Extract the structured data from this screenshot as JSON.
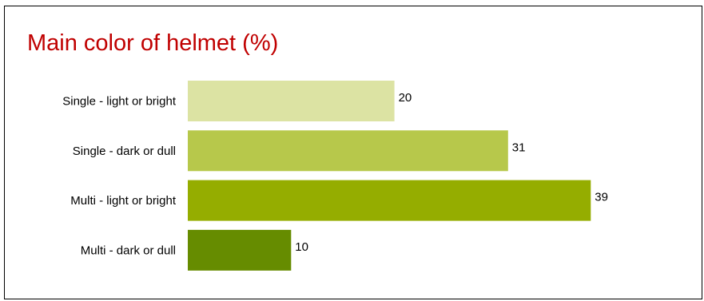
{
  "chart_data": {
    "type": "bar",
    "orientation": "horizontal",
    "title": "Main color of helmet (%)",
    "categories": [
      "Single - light or bright",
      "Single - dark or dull",
      "Multi - light or bright",
      "Multi - dark or dull"
    ],
    "values": [
      20,
      31,
      39,
      10
    ],
    "colors": [
      "#dce3a3",
      "#b7c84b",
      "#95ad00",
      "#668c00"
    ],
    "title_color": "#c00000",
    "xlabel": "",
    "ylabel": "",
    "xlim": [
      0,
      40
    ],
    "grid": false,
    "legend": "none",
    "data_labels": true
  }
}
